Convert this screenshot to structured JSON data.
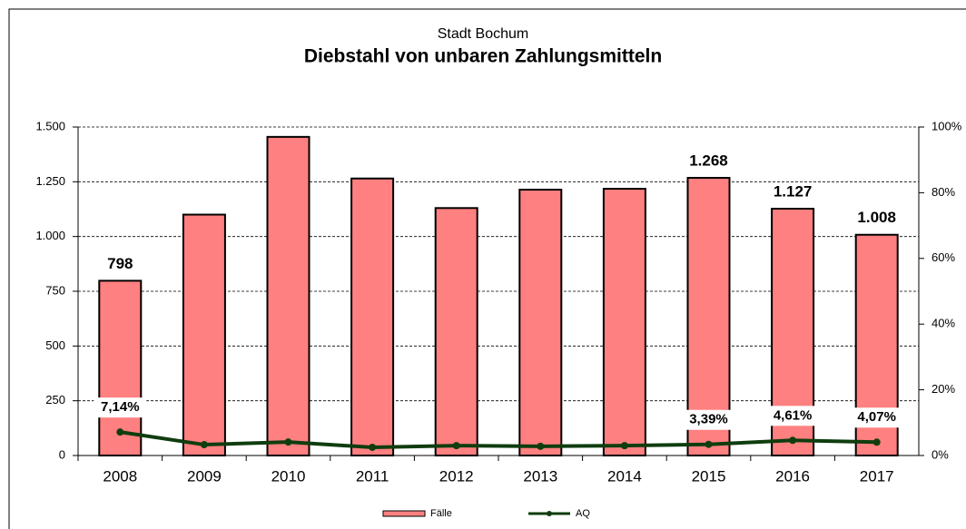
{
  "chart_data": {
    "type": "bar-line",
    "subtitle": "Stadt Bochum",
    "title": "Diebstahl von unbaren Zahlungsmitteln",
    "categories": [
      "2008",
      "2009",
      "2010",
      "2011",
      "2012",
      "2013",
      "2014",
      "2015",
      "2016",
      "2017"
    ],
    "series": [
      {
        "name": "Fälle",
        "type": "bar",
        "color": "#ff8080",
        "values": [
          798,
          1100,
          1455,
          1265,
          1130,
          1214,
          1218,
          1268,
          1127,
          1008
        ],
        "value_labels": [
          "798",
          null,
          null,
          null,
          null,
          null,
          null,
          "1.268",
          "1.127",
          "1.008"
        ]
      },
      {
        "name": "AQ",
        "type": "line",
        "axis": "y2",
        "color": "#0f3d0f",
        "values": [
          7.14,
          3.3,
          4.1,
          2.5,
          3.0,
          2.8,
          3.0,
          3.39,
          4.61,
          4.07
        ],
        "value_labels": [
          "7,14%",
          null,
          null,
          null,
          null,
          null,
          null,
          "3,39%",
          "4,61%",
          "4,07%"
        ]
      }
    ],
    "ylim": [
      0,
      1500
    ],
    "yticks": [
      0,
      250,
      500,
      750,
      {
        "value": 1000,
        "label": "1.000"
      },
      {
        "value": 1250,
        "label": "1.250"
      },
      {
        "value": 1500,
        "label": "1.500"
      }
    ],
    "y2lim": [
      0,
      100
    ],
    "y2ticks": [
      {
        "value": 0,
        "label": "0%"
      },
      {
        "value": 20,
        "label": "20%"
      },
      {
        "value": 40,
        "label": "40%"
      },
      {
        "value": 60,
        "label": "60%"
      },
      {
        "value": 80,
        "label": "80%"
      },
      {
        "value": 100,
        "label": "100%"
      }
    ],
    "grid": true,
    "legend": "bottom"
  }
}
